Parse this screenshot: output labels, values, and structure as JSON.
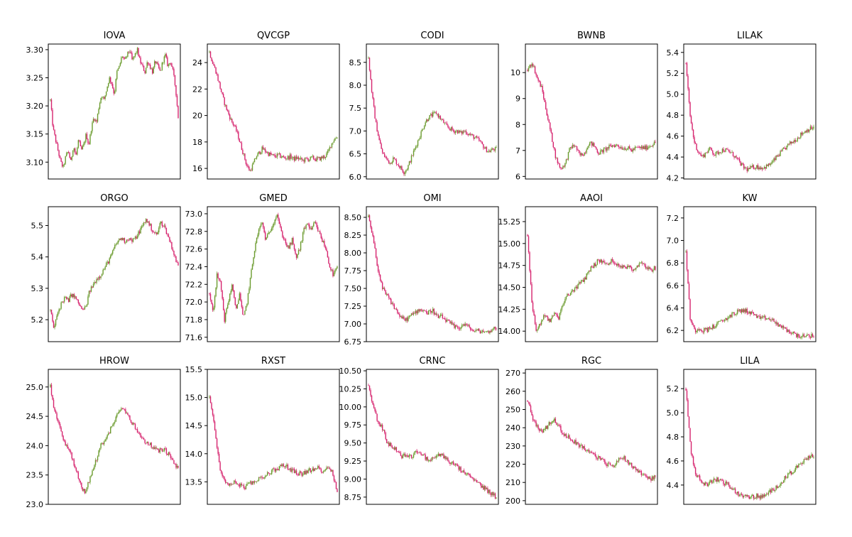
{
  "chart_data": [
    {
      "title": "IOVA",
      "type": "candlestick",
      "ylim": [
        3.07,
        3.31
      ],
      "yticks": [
        3.1,
        3.15,
        3.2,
        3.25,
        3.3
      ],
      "ytick_labels": [
        "3.10",
        "3.15",
        "3.20",
        "3.25",
        "3.30"
      ],
      "close_series": [
        3.21,
        3.16,
        3.14,
        3.12,
        3.1,
        3.09,
        3.11,
        3.12,
        3.1,
        3.13,
        3.11,
        3.14,
        3.12,
        3.13,
        3.15,
        3.13,
        3.16,
        3.18,
        3.17,
        3.2,
        3.22,
        3.21,
        3.23,
        3.25,
        3.24,
        3.22,
        3.26,
        3.27,
        3.29,
        3.28,
        3.29,
        3.3,
        3.28,
        3.29,
        3.3,
        3.28,
        3.27,
        3.26,
        3.28,
        3.27,
        3.26,
        3.28,
        3.27,
        3.26,
        3.28,
        3.29,
        3.27,
        3.28,
        3.26,
        3.23,
        3.18
      ]
    },
    {
      "title": "QVCGP",
      "type": "candlestick",
      "ylim": [
        15.2,
        25.4
      ],
      "yticks": [
        16,
        18,
        20,
        22,
        24
      ],
      "ytick_labels": [
        "16",
        "18",
        "20",
        "22",
        "24"
      ],
      "close_series": [
        24.8,
        24.0,
        23.4,
        22.5,
        21.6,
        20.8,
        20.2,
        19.6,
        19.2,
        18.6,
        17.8,
        17.0,
        16.2,
        15.8,
        16.3,
        16.9,
        17.2,
        17.5,
        17.3,
        17.1,
        17.0,
        16.9,
        17.0,
        16.9,
        16.8,
        16.8,
        16.9,
        16.7,
        16.8,
        16.7,
        16.6,
        16.7,
        16.7,
        16.8,
        16.7,
        16.7,
        16.8,
        16.9,
        17.2,
        17.8,
        18.2,
        18.4
      ]
    },
    {
      "title": "CODI",
      "type": "candlestick",
      "ylim": [
        5.95,
        8.9
      ],
      "yticks": [
        6.0,
        6.5,
        7.0,
        7.5,
        8.0,
        8.5
      ],
      "ytick_labels": [
        "6.0",
        "6.5",
        "7.0",
        "7.5",
        "8.0",
        "8.5"
      ],
      "close_series": [
        8.6,
        7.8,
        7.2,
        6.8,
        6.5,
        6.4,
        6.3,
        6.4,
        6.3,
        6.2,
        6.1,
        6.2,
        6.4,
        6.6,
        6.8,
        7.0,
        7.2,
        7.3,
        7.35,
        7.4,
        7.3,
        7.2,
        7.1,
        7.05,
        7.0,
        7.0,
        6.95,
        7.0,
        6.95,
        6.9,
        6.85,
        6.8,
        6.7,
        6.6,
        6.55,
        6.6,
        6.6
      ]
    },
    {
      "title": "BWNB",
      "type": "candlestick",
      "ylim": [
        5.9,
        11.1
      ],
      "yticks": [
        6,
        7,
        8,
        9,
        10
      ],
      "ytick_labels": [
        "6",
        "7",
        "8",
        "9",
        "10"
      ],
      "close_series": [
        10.1,
        10.4,
        9.8,
        9.4,
        8.5,
        7.6,
        6.7,
        6.3,
        6.5,
        7.1,
        7.2,
        6.8,
        6.9,
        7.3,
        7.2,
        6.9,
        7.0,
        7.1,
        7.2,
        7.2,
        7.1,
        7.1,
        7.0,
        7.1,
        7.1,
        7.1,
        7.2,
        7.3
      ]
    },
    {
      "title": "LILAK",
      "type": "candlestick",
      "ylim": [
        4.19,
        5.48
      ],
      "yticks": [
        4.2,
        4.4,
        4.6,
        4.8,
        5.0,
        5.2,
        5.4
      ],
      "ytick_labels": [
        "4.2",
        "4.4",
        "4.6",
        "4.8",
        "5.0",
        "5.2",
        "5.4"
      ],
      "close_series": [
        5.3,
        4.8,
        4.55,
        4.45,
        4.4,
        4.45,
        4.48,
        4.42,
        4.45,
        4.47,
        4.46,
        4.44,
        4.4,
        4.35,
        4.3,
        4.28,
        4.3,
        4.31,
        4.3,
        4.3,
        4.32,
        4.35,
        4.4,
        4.44,
        4.48,
        4.52,
        4.55,
        4.58,
        4.62,
        4.65,
        4.67,
        4.68
      ]
    },
    {
      "title": "ORGO",
      "type": "candlestick",
      "ylim": [
        5.13,
        5.56
      ],
      "yticks": [
        5.2,
        5.3,
        5.4,
        5.5
      ],
      "ytick_labels": [
        "5.2",
        "5.3",
        "5.4",
        "5.5"
      ],
      "close_series": [
        5.23,
        5.17,
        5.22,
        5.25,
        5.27,
        5.26,
        5.28,
        5.27,
        5.25,
        5.23,
        5.24,
        5.29,
        5.31,
        5.33,
        5.34,
        5.36,
        5.38,
        5.4,
        5.43,
        5.45,
        5.46,
        5.45,
        5.46,
        5.45,
        5.46,
        5.48,
        5.5,
        5.52,
        5.5,
        5.48,
        5.47,
        5.51,
        5.5,
        5.47,
        5.44,
        5.4,
        5.37
      ]
    },
    {
      "title": "GMED",
      "type": "candlestick",
      "ylim": [
        71.55,
        73.08
      ],
      "yticks": [
        71.6,
        71.8,
        72.0,
        72.2,
        72.4,
        72.6,
        72.8,
        73.0
      ],
      "ytick_labels": [
        "71.6",
        "71.8",
        "72.0",
        "72.2",
        "72.4",
        "72.6",
        "72.8",
        "73.0"
      ],
      "close_series": [
        72.1,
        71.9,
        72.3,
        72.2,
        71.8,
        72.0,
        72.2,
        71.9,
        72.1,
        71.8,
        72.0,
        72.3,
        72.6,
        72.8,
        72.9,
        72.7,
        72.8,
        72.9,
        73.0,
        72.8,
        72.7,
        72.6,
        72.7,
        72.5,
        72.6,
        72.8,
        72.9,
        72.8,
        72.9,
        72.8,
        72.7,
        72.6,
        72.4,
        72.3,
        72.4
      ]
    },
    {
      "title": "OMI",
      "type": "candlestick",
      "ylim": [
        6.75,
        8.65
      ],
      "yticks": [
        6.75,
        7.0,
        7.25,
        7.5,
        7.75,
        8.0,
        8.25,
        8.5
      ],
      "ytick_labels": [
        "6.75",
        "7.00",
        "7.25",
        "7.50",
        "7.75",
        "8.00",
        "8.25",
        "8.50"
      ],
      "close_series": [
        8.5,
        8.2,
        7.8,
        7.5,
        7.4,
        7.3,
        7.2,
        7.1,
        7.05,
        7.1,
        7.15,
        7.2,
        7.2,
        7.15,
        7.2,
        7.1,
        7.1,
        7.05,
        7.0,
        6.95,
        6.95,
        7.0,
        6.95,
        6.9,
        6.9,
        6.9,
        6.88,
        6.92,
        6.95
      ]
    },
    {
      "title": "AAOI",
      "type": "candlestick",
      "ylim": [
        13.88,
        15.42
      ],
      "yticks": [
        14.0,
        14.25,
        14.5,
        14.75,
        15.0,
        15.25
      ],
      "ytick_labels": [
        "14.00",
        "14.25",
        "14.50",
        "14.75",
        "15.00",
        "15.25"
      ],
      "close_series": [
        15.1,
        14.3,
        14.0,
        14.1,
        14.2,
        14.1,
        14.2,
        14.15,
        14.3,
        14.4,
        14.45,
        14.5,
        14.55,
        14.6,
        14.7,
        14.75,
        14.8,
        14.8,
        14.75,
        14.8,
        14.78,
        14.75,
        14.72,
        14.75,
        14.7,
        14.75,
        14.8,
        14.72,
        14.7,
        14.72
      ]
    },
    {
      "title": "KW",
      "type": "candlestick",
      "ylim": [
        6.1,
        7.3
      ],
      "yticks": [
        6.2,
        6.4,
        6.6,
        6.8,
        7.0,
        7.2
      ],
      "ytick_labels": [
        "6.2",
        "6.4",
        "6.6",
        "6.8",
        "7.0",
        "7.2"
      ],
      "close_series": [
        6.9,
        6.3,
        6.2,
        6.22,
        6.2,
        6.21,
        6.23,
        6.25,
        6.28,
        6.3,
        6.33,
        6.35,
        6.37,
        6.38,
        6.37,
        6.35,
        6.33,
        6.3,
        6.31,
        6.3,
        6.28,
        6.25,
        6.22,
        6.2,
        6.18,
        6.16,
        6.15,
        6.14,
        6.15,
        6.16
      ]
    },
    {
      "title": "HROW",
      "type": "candlestick",
      "ylim": [
        23.0,
        25.3
      ],
      "yticks": [
        23.0,
        23.5,
        24.0,
        24.5,
        25.0
      ],
      "ytick_labels": [
        "23.0",
        "23.5",
        "24.0",
        "24.5",
        "25.0"
      ],
      "close_series": [
        25.0,
        24.6,
        24.4,
        24.2,
        24.0,
        23.9,
        23.7,
        23.5,
        23.3,
        23.2,
        23.4,
        23.6,
        23.8,
        24.0,
        24.1,
        24.2,
        24.35,
        24.5,
        24.6,
        24.65,
        24.5,
        24.4,
        24.3,
        24.2,
        24.1,
        24.05,
        24.0,
        23.95,
        23.9,
        23.95,
        23.9,
        23.8,
        23.7,
        23.6
      ]
    },
    {
      "title": "RXST",
      "type": "candlestick",
      "ylim": [
        13.1,
        15.5
      ],
      "yticks": [
        13.5,
        14.0,
        14.5,
        15.0,
        15.5
      ],
      "ytick_labels": [
        "13.5",
        "14.0",
        "14.5",
        "15.0",
        "15.5"
      ],
      "close_series": [
        15.0,
        14.5,
        13.8,
        13.5,
        13.45,
        13.5,
        13.45,
        13.4,
        13.45,
        13.5,
        13.55,
        13.6,
        13.65,
        13.7,
        13.75,
        13.8,
        13.75,
        13.7,
        13.65,
        13.65,
        13.7,
        13.7,
        13.75,
        13.7,
        13.75,
        13.7,
        13.3
      ]
    },
    {
      "title": "CRNC",
      "type": "candlestick",
      "ylim": [
        8.65,
        10.52
      ],
      "yticks": [
        8.75,
        9.0,
        9.25,
        9.5,
        9.75,
        10.0,
        10.25,
        10.5
      ],
      "ytick_labels": [
        "8.75",
        "9.00",
        "9.25",
        "9.50",
        "9.75",
        "10.00",
        "10.25",
        "10.50"
      ],
      "close_series": [
        10.3,
        10.0,
        9.8,
        9.7,
        9.5,
        9.45,
        9.4,
        9.3,
        9.35,
        9.3,
        9.4,
        9.35,
        9.3,
        9.25,
        9.3,
        9.35,
        9.3,
        9.25,
        9.2,
        9.15,
        9.1,
        9.05,
        9.0,
        8.95,
        8.9,
        8.85,
        8.8,
        8.75
      ]
    },
    {
      "title": "RGC",
      "type": "candlestick",
      "ylim": [
        198,
        272
      ],
      "yticks": [
        200,
        210,
        220,
        230,
        240,
        250,
        260,
        270
      ],
      "ytick_labels": [
        "200",
        "210",
        "220",
        "230",
        "240",
        "250",
        "260",
        "270"
      ],
      "close_series": [
        255,
        245,
        240,
        238,
        242,
        245,
        240,
        236,
        234,
        232,
        230,
        228,
        226,
        224,
        222,
        220,
        219,
        222,
        224,
        221,
        218,
        216,
        214,
        212,
        213
      ]
    },
    {
      "title": "LILA",
      "type": "candlestick",
      "ylim": [
        4.24,
        5.36
      ],
      "yticks": [
        4.4,
        4.6,
        4.8,
        5.0,
        5.2
      ],
      "ytick_labels": [
        "4.4",
        "4.6",
        "4.8",
        "5.0",
        "5.2"
      ],
      "close_series": [
        5.2,
        4.7,
        4.5,
        4.45,
        4.4,
        4.42,
        4.45,
        4.44,
        4.42,
        4.4,
        4.36,
        4.33,
        4.31,
        4.3,
        4.3,
        4.31,
        4.3,
        4.32,
        4.35,
        4.38,
        4.42,
        4.46,
        4.5,
        4.53,
        4.56,
        4.6,
        4.63,
        4.65
      ]
    }
  ],
  "colors": {
    "up": "#6b9b2e",
    "down": "#d6246e",
    "axis": "#000000",
    "background": "#ffffff"
  }
}
